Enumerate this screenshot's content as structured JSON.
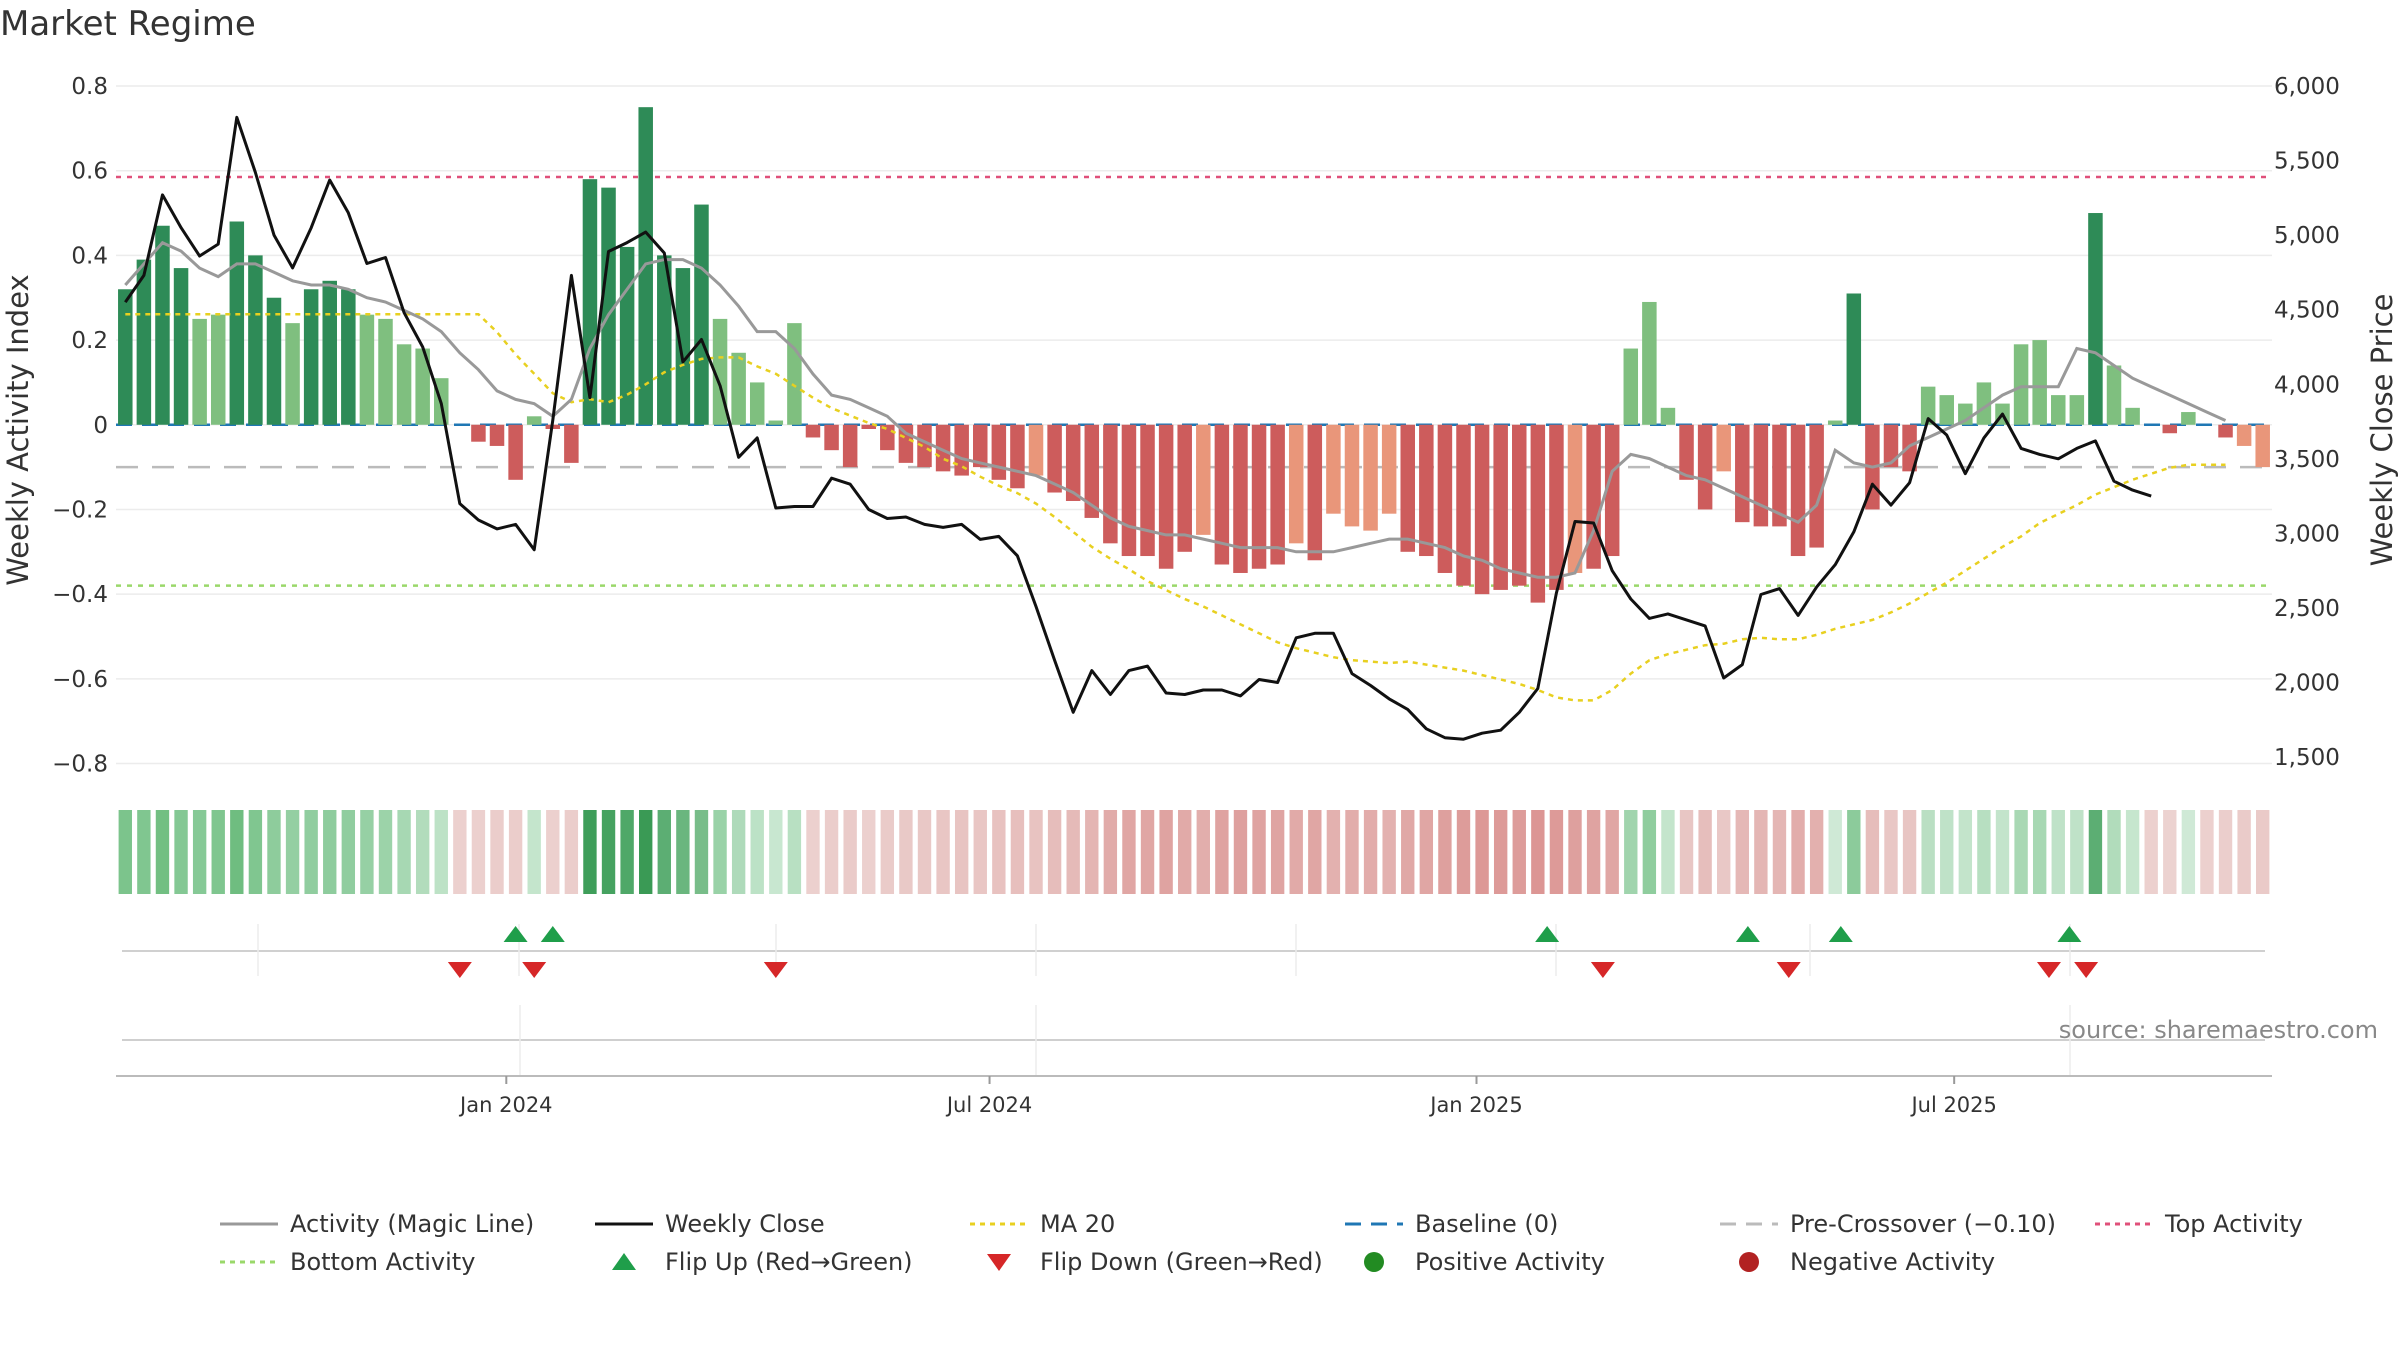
{
  "title": "Market Regime",
  "source": "source: sharemaestro.com",
  "colors": {
    "strong_green": "#2e8b57",
    "light_green": "#7fbf7f",
    "strong_red": "#cd5c5c",
    "light_red": "#e9967a",
    "activity_line": "#999999",
    "close_line": "#111111",
    "ma_line": "#e8d020",
    "baseline": "#1f77b4",
    "pre_crossover": "#bbbbbb",
    "top_line": "#e0507a",
    "bottom_line": "#9ad86a",
    "flip_up": "#1f9e4a",
    "flip_down": "#d62728",
    "positive_dot": "#228b22",
    "negative_dot": "#b22222"
  },
  "chart_data": {
    "type": "bar",
    "title": "Market Regime",
    "ylabel_left": "Weekly Activity Index",
    "ylabel_right": "Weekly Close Price",
    "y_left_range": [
      -0.82,
      0.8
    ],
    "y_left_ticks": [
      "0.8",
      "0.6",
      "0.4",
      "0.2",
      "0",
      "−0.2",
      "−0.4",
      "−0.6",
      "−0.8"
    ],
    "y_right_range": [
      1400,
      6000
    ],
    "y_right_ticks": [
      "6,000",
      "5,500",
      "5,000",
      "4,500",
      "4,000",
      "3,500",
      "3,000",
      "2,500",
      "2,000",
      "1,500"
    ],
    "x_ticks": [
      "Jan 2024",
      "Jul 2024",
      "Jan 2025",
      "Jul 2025"
    ],
    "x_tick_weeks": [
      20.5,
      46.5,
      72.7,
      98.4
    ],
    "top_activity": 0.585,
    "bottom_activity": -0.38,
    "pre_crossover": -0.1,
    "baseline": 0,
    "activity_index": [
      0.32,
      0.39,
      0.47,
      0.37,
      0.25,
      0.26,
      0.48,
      0.4,
      0.3,
      0.24,
      0.32,
      0.34,
      0.32,
      0.26,
      0.25,
      0.19,
      0.18,
      0.11,
      0,
      -0.04,
      -0.05,
      -0.13,
      0.02,
      -0.01,
      -0.09,
      0.58,
      0.56,
      0.42,
      0.75,
      0.4,
      0.37,
      0.52,
      0.25,
      0.17,
      0.1,
      0.01,
      0.24,
      -0.03,
      -0.06,
      -0.1,
      -0.01,
      -0.06,
      -0.09,
      -0.1,
      -0.11,
      -0.12,
      -0.1,
      -0.13,
      -0.15,
      -0.12,
      -0.16,
      -0.18,
      -0.22,
      -0.28,
      -0.31,
      -0.31,
      -0.34,
      -0.3,
      -0.26,
      -0.33,
      -0.35,
      -0.34,
      -0.33,
      -0.28,
      -0.32,
      -0.21,
      -0.24,
      -0.25,
      -0.21,
      -0.3,
      -0.31,
      -0.35,
      -0.38,
      -0.4,
      -0.39,
      -0.38,
      -0.42,
      -0.39,
      -0.35,
      -0.34,
      -0.31,
      0.18,
      0.29,
      0.04,
      -0.13,
      -0.2,
      -0.11,
      -0.23,
      -0.24,
      -0.24,
      -0.31,
      -0.29,
      0.01,
      0.31,
      -0.2,
      -0.1,
      -0.11,
      0.09,
      0.07,
      0.05,
      0.1,
      0.05,
      0.19,
      0.2,
      0.07,
      0.07,
      0.5,
      0.14,
      0.04,
      0,
      -0.02,
      0.03,
      0,
      -0.03,
      -0.05,
      -0.1
    ],
    "weekly_close": [
      4550,
      4730,
      5270,
      5050,
      4860,
      4940,
      5790,
      5420,
      5000,
      4780,
      5050,
      5370,
      5150,
      4810,
      4850,
      4480,
      4250,
      3870,
      3200,
      3090,
      3030,
      3060,
      2890,
      3760,
      4730,
      3910,
      4890,
      4950,
      5020,
      4880,
      4150,
      4300,
      3990,
      3510,
      3640,
      3170,
      3180,
      3180,
      3370,
      3330,
      3160,
      3100,
      3110,
      3060,
      3040,
      3060,
      2960,
      2980,
      2850,
      2510,
      2150,
      1800,
      2080,
      1920,
      2080,
      2110,
      1930,
      1920,
      1950,
      1950,
      1910,
      2020,
      2000,
      2300,
      2330,
      2330,
      2060,
      1980,
      1890,
      1820,
      1690,
      1630,
      1620,
      1660,
      1680,
      1800,
      1960,
      2600,
      3080,
      3070,
      2750,
      2560,
      2430,
      2460,
      2420,
      2380,
      2030,
      2120,
      2590,
      2630,
      2450,
      2640,
      2790,
      3010,
      3330,
      3190,
      3340,
      3770,
      3660,
      3400,
      3640,
      3800,
      3570,
      3530,
      3500,
      3570,
      3620,
      3350,
      3290,
      3250
    ],
    "magic_line": [
      0.33,
      0.38,
      0.43,
      0.41,
      0.37,
      0.35,
      0.38,
      0.38,
      0.36,
      0.34,
      0.33,
      0.33,
      0.32,
      0.3,
      0.29,
      0.27,
      0.25,
      0.22,
      0.17,
      0.13,
      0.08,
      0.06,
      0.05,
      0.02,
      0.06,
      0.18,
      0.26,
      0.32,
      0.38,
      0.39,
      0.39,
      0.37,
      0.33,
      0.28,
      0.22,
      0.22,
      0.18,
      0.12,
      0.07,
      0.06,
      0.04,
      0.02,
      -0.02,
      -0.04,
      -0.06,
      -0.08,
      -0.09,
      -0.1,
      -0.11,
      -0.12,
      -0.14,
      -0.16,
      -0.19,
      -0.22,
      -0.24,
      -0.25,
      -0.26,
      -0.26,
      -0.27,
      -0.28,
      -0.29,
      -0.29,
      -0.29,
      -0.3,
      -0.3,
      -0.3,
      -0.29,
      -0.28,
      -0.27,
      -0.27,
      -0.28,
      -0.29,
      -0.31,
      -0.32,
      -0.34,
      -0.35,
      -0.36,
      -0.36,
      -0.35,
      -0.25,
      -0.11,
      -0.07,
      -0.08,
      -0.1,
      -0.12,
      -0.13,
      -0.15,
      -0.17,
      -0.19,
      -0.21,
      -0.23,
      -0.19,
      -0.06,
      -0.09,
      -0.1,
      -0.09,
      -0.05,
      -0.03,
      -0.01,
      0.01,
      0.04,
      0.07,
      0.09,
      0.09,
      0.09,
      0.18,
      0.17,
      0.14,
      0.11,
      0.09,
      0.07,
      0.05,
      0.03,
      0.01
    ],
    "ma20": [
      4470,
      4470,
      4470,
      4470,
      4470,
      4470,
      4470,
      4470,
      4470,
      4470,
      4470,
      4470,
      4470,
      4470,
      4470,
      4470,
      4470,
      4470,
      4470,
      4470,
      4350,
      4200,
      4070,
      3940,
      3880,
      3900,
      3880,
      3930,
      4000,
      4080,
      4130,
      4170,
      4180,
      4180,
      4120,
      4070,
      3990,
      3910,
      3840,
      3790,
      3740,
      3700,
      3640,
      3580,
      3500,
      3450,
      3380,
      3320,
      3270,
      3200,
      3110,
      3010,
      2910,
      2830,
      2760,
      2680,
      2620,
      2560,
      2510,
      2450,
      2390,
      2330,
      2270,
      2230,
      2200,
      2170,
      2150,
      2140,
      2130,
      2140,
      2120,
      2100,
      2080,
      2050,
      2020,
      1990,
      1950,
      1900,
      1880,
      1880,
      1950,
      2060,
      2150,
      2190,
      2220,
      2250,
      2260,
      2290,
      2300,
      2290,
      2290,
      2320,
      2360,
      2390,
      2420,
      2470,
      2530,
      2600,
      2670,
      2750,
      2830,
      2910,
      2980,
      3070,
      3130,
      3190,
      3260,
      3310,
      3360,
      3400,
      3440,
      3460,
      3460,
      3460
    ],
    "regime_strip_colors": [
      "#7cc48c",
      "#80c690",
      "#72bf82",
      "#84c894",
      "#86c996",
      "#7fc68f",
      "#6fbd80",
      "#80c690",
      "#8ecc9c",
      "#94cfa2",
      "#90cd9f",
      "#8ecc9d",
      "#90cd9f",
      "#96d0a4",
      "#9cd3a9",
      "#a7d8b3",
      "#b2dcbc",
      "#bde2c6",
      "#ecd0ce",
      "#ecd0ce",
      "#ebcdcb",
      "#ebcdcb",
      "#c4e5cc",
      "#ecd0ce",
      "#ebcdcb",
      "#3f9e5a",
      "#46a260",
      "#4fa868",
      "#3a9a55",
      "#5cae73",
      "#6ab67e",
      "#78bd89",
      "#99d2a7",
      "#aedaba",
      "#bce2c6",
      "#c8e7d0",
      "#b8e0c2",
      "#ecd0ce",
      "#ebcdcb",
      "#eacbc9",
      "#ecd0ce",
      "#eacbc9",
      "#e9c9c7",
      "#e9c8c6",
      "#e9c6c4",
      "#e8c4c2",
      "#e9c6c4",
      "#e8c2c0",
      "#e7bfbd",
      "#e8c3c1",
      "#e6bdbb",
      "#e5bab8",
      "#e4b5b3",
      "#e1aba9",
      "#e0a6a4",
      "#e0a6a4",
      "#dfa3a1",
      "#e1aaa8",
      "#e2aeac",
      "#dfa3a1",
      "#dea09e",
      "#dfa3a1",
      "#dfa4a2",
      "#e1aaa8",
      "#e0a6a4",
      "#e3b1af",
      "#e2adab",
      "#e2acaa",
      "#e3b1af",
      "#e0a8a6",
      "#e0a6a4",
      "#dea09e",
      "#dd9c9a",
      "#dd9896",
      "#dd9a98",
      "#dd9c9a",
      "#dc9694",
      "#dd9a98",
      "#dea09e",
      "#dfa3a1",
      "#e0a6a4",
      "#a0d4ad",
      "#8fcd9e",
      "#c4e5cc",
      "#e8c6c4",
      "#e6bebc",
      "#e9c8c6",
      "#e5b8b6",
      "#e4b6b4",
      "#e4b6b4",
      "#e2adab",
      "#e3b0ae",
      "#cfe9d6",
      "#8ccb9b",
      "#e6bdbb",
      "#e9c7c5",
      "#e8c5c3",
      "#badfc3",
      "#bfe2c8",
      "#c3e4cb",
      "#b7dfc1",
      "#c3e4cb",
      "#a9d8b4",
      "#a7d8b3",
      "#bfe2c8",
      "#bfe2c8",
      "#5cae73",
      "#b1dcbb",
      "#c6e6ce",
      "#ecd0ce",
      "#ecd2d0",
      "#cfe9d6",
      "#ecd0ce",
      "#ebcecc",
      "#eacbc9",
      "#eacac8"
    ],
    "flip_up_weeks": [
      21.0,
      23.0,
      76.5,
      87.3,
      92.3,
      104.6
    ],
    "flip_down_weeks": [
      18.0,
      22.0,
      35.0,
      79.5,
      89.5,
      103.5,
      105.5
    ]
  },
  "legend": {
    "items": [
      {
        "label": "Activity (Magic Line)",
        "icon": "solid-gray-line"
      },
      {
        "label": "Weekly Close",
        "icon": "solid-black-line"
      },
      {
        "label": "MA 20",
        "icon": "dotted-yellow-line"
      },
      {
        "label": "Baseline (0)",
        "icon": "dashed-blue-line"
      },
      {
        "label": "Pre-Crossover (−0.10)",
        "icon": "dashed-gray-line"
      },
      {
        "label": "Top Activity",
        "icon": "dotted-pink-line"
      },
      {
        "label": "Bottom Activity",
        "icon": "dotted-green-line"
      },
      {
        "label": "Flip Up (Red→Green)",
        "icon": "green-up-triangle"
      },
      {
        "label": "Flip Down (Green→Red)",
        "icon": "red-down-triangle"
      },
      {
        "label": "Positive Activity",
        "icon": "green-dot"
      },
      {
        "label": "Negative Activity",
        "icon": "red-dot"
      }
    ]
  }
}
